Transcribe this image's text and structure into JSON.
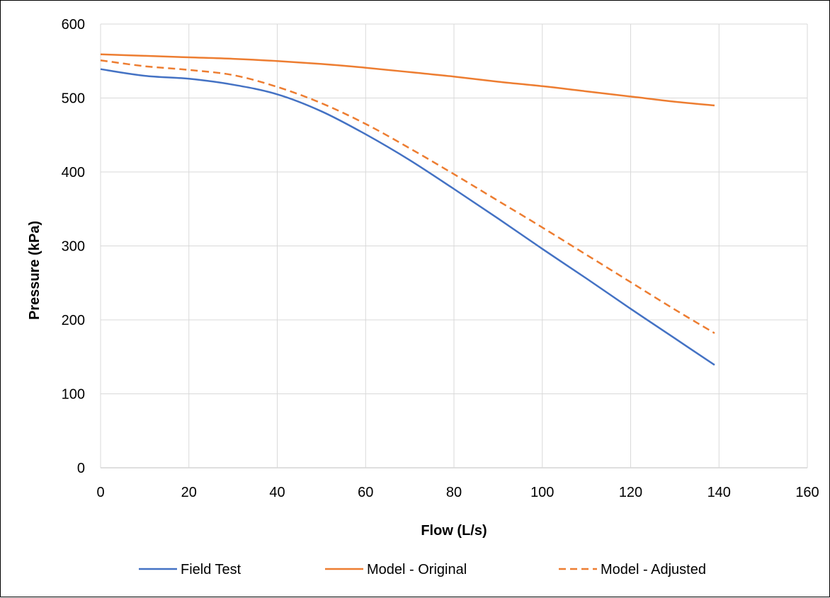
{
  "chart_data": {
    "type": "line",
    "title": "",
    "xlabel": "Flow (L/s)",
    "ylabel": "Pressure (kPa)",
    "xlim": [
      0,
      160
    ],
    "ylim": [
      0,
      600
    ],
    "xticks": [
      0,
      20,
      40,
      60,
      80,
      100,
      120,
      140,
      160
    ],
    "yticks": [
      0,
      100,
      200,
      300,
      400,
      500,
      600
    ],
    "grid": true,
    "legend_position": "bottom",
    "series": [
      {
        "name": "Field Test",
        "color": "#4472C4",
        "dash": "solid",
        "x": [
          0,
          10,
          20,
          30,
          40,
          50,
          60,
          70,
          80,
          90,
          100,
          110,
          120,
          130,
          139
        ],
        "y": [
          539,
          530,
          526,
          518,
          505,
          482,
          451,
          416,
          377,
          337,
          296,
          256,
          215,
          175,
          139
        ]
      },
      {
        "name": "Model - Original",
        "color": "#ED7D31",
        "dash": "solid",
        "x": [
          0,
          10,
          20,
          30,
          40,
          50,
          60,
          70,
          80,
          90,
          100,
          110,
          120,
          130,
          139
        ],
        "y": [
          559,
          557,
          555,
          553,
          550,
          546,
          541,
          535,
          529,
          522,
          516,
          509,
          502,
          495,
          490
        ]
      },
      {
        "name": "Model - Adjusted",
        "color": "#ED7D31",
        "dash": "dashed",
        "x": [
          0,
          10,
          20,
          30,
          40,
          50,
          60,
          70,
          80,
          90,
          100,
          110,
          120,
          130,
          139
        ],
        "y": [
          551,
          543,
          538,
          531,
          515,
          493,
          465,
          432,
          397,
          361,
          325,
          288,
          251,
          214,
          182
        ]
      }
    ]
  }
}
